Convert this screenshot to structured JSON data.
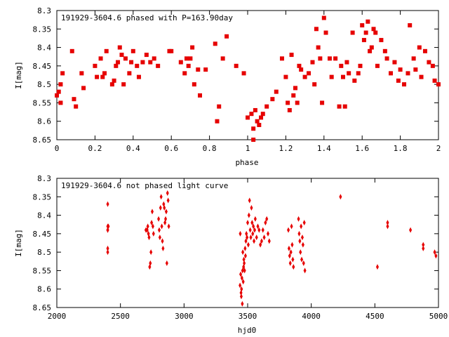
{
  "chart_data": [
    {
      "type": "scatter",
      "title": "191929-3604.6 phased with P=163.90day",
      "xlabel": "phase",
      "ylabel": "I[mag]",
      "xlim": [
        0,
        2
      ],
      "ylim": [
        8.3,
        8.65
      ],
      "y_inverted": true,
      "xticks": [
        "0",
        "0.2",
        "0.4",
        "0.6",
        "0.8",
        "1",
        "1.2",
        "1.4",
        "1.6",
        "1.8",
        "2"
      ],
      "yticks": [
        "8.3",
        "8.35",
        "8.4",
        "8.45",
        "8.5",
        "8.55",
        "8.6",
        "8.65"
      ],
      "grid": false,
      "marker_color": "#e60000",
      "x": [
        0.0,
        0.01,
        0.02,
        0.02,
        0.03,
        0.08,
        0.09,
        0.1,
        0.13,
        0.14,
        0.2,
        0.21,
        0.23,
        0.24,
        0.25,
        0.26,
        0.29,
        0.3,
        0.31,
        0.32,
        0.33,
        0.34,
        0.35,
        0.36,
        0.38,
        0.39,
        0.4,
        0.42,
        0.43,
        0.45,
        0.47,
        0.49,
        0.51,
        0.53,
        0.59,
        0.6,
        0.65,
        0.67,
        0.68,
        0.69,
        0.7,
        0.71,
        0.72,
        0.74,
        0.75,
        0.78,
        0.83,
        0.84,
        0.85,
        0.87,
        0.89,
        0.94,
        0.98,
        1.0,
        1.02,
        1.03,
        1.03,
        1.04,
        1.05,
        1.06,
        1.07,
        1.08,
        1.1,
        1.13,
        1.15,
        1.18,
        1.2,
        1.21,
        1.22,
        1.23,
        1.24,
        1.25,
        1.26,
        1.27,
        1.28,
        1.3,
        1.32,
        1.34,
        1.35,
        1.36,
        1.37,
        1.38,
        1.39,
        1.4,
        1.41,
        1.43,
        1.44,
        1.46,
        1.48,
        1.49,
        1.5,
        1.51,
        1.52,
        1.53,
        1.55,
        1.56,
        1.58,
        1.59,
        1.6,
        1.61,
        1.62,
        1.63,
        1.64,
        1.65,
        1.66,
        1.67,
        1.68,
        1.7,
        1.72,
        1.73,
        1.75,
        1.77,
        1.79,
        1.8,
        1.82,
        1.84,
        1.85,
        1.87,
        1.88,
        1.9,
        1.91,
        1.93,
        1.95,
        1.97,
        1.98,
        2.0
      ],
      "y": [
        8.53,
        8.52,
        8.55,
        8.5,
        8.47,
        8.41,
        8.54,
        8.56,
        8.47,
        8.51,
        8.45,
        8.48,
        8.43,
        8.48,
        8.47,
        8.41,
        8.5,
        8.49,
        8.45,
        8.44,
        8.4,
        8.42,
        8.5,
        8.43,
        8.47,
        8.44,
        8.41,
        8.45,
        8.48,
        8.44,
        8.42,
        8.44,
        8.43,
        8.45,
        8.41,
        8.41,
        8.44,
        8.47,
        8.43,
        8.45,
        8.43,
        8.4,
        8.5,
        8.46,
        8.53,
        8.46,
        8.39,
        8.6,
        8.56,
        8.43,
        8.37,
        8.45,
        8.47,
        8.59,
        8.58,
        8.62,
        8.65,
        8.57,
        8.6,
        8.61,
        8.59,
        8.58,
        8.56,
        8.54,
        8.52,
        8.43,
        8.48,
        8.55,
        8.57,
        8.42,
        8.53,
        8.51,
        8.55,
        8.45,
        8.46,
        8.48,
        8.47,
        8.44,
        8.5,
        8.35,
        8.4,
        8.43,
        8.55,
        8.32,
        8.36,
        8.43,
        8.48,
        8.43,
        8.56,
        8.45,
        8.48,
        8.56,
        8.44,
        8.47,
        8.36,
        8.49,
        8.47,
        8.45,
        8.34,
        8.38,
        8.36,
        8.33,
        8.41,
        8.4,
        8.35,
        8.36,
        8.45,
        8.38,
        8.41,
        8.43,
        8.47,
        8.44,
        8.49,
        8.46,
        8.5,
        8.47,
        8.34,
        8.43,
        8.46,
        8.4,
        8.48,
        8.41,
        8.44,
        8.45,
        8.49,
        8.5
      ]
    },
    {
      "type": "scatter",
      "title": "191929-3604.6 not phased light curve",
      "xlabel": "hjd0",
      "ylabel": "I[mag]",
      "xlim": [
        2000,
        5000
      ],
      "ylim": [
        8.3,
        8.65
      ],
      "y_inverted": true,
      "xticks": [
        "2000",
        "2500",
        "3000",
        "3500",
        "4000",
        "4500",
        "5000"
      ],
      "yticks": [
        "8.3",
        "8.35",
        "8.4",
        "8.45",
        "8.5",
        "8.55",
        "8.6",
        "8.65"
      ],
      "grid": false,
      "marker_color": "#e60000",
      "x": [
        2400,
        2400,
        2400,
        2400,
        2400,
        2400,
        2405,
        2700,
        2710,
        2715,
        2720,
        2725,
        2730,
        2735,
        2740,
        2745,
        2750,
        2755,
        2760,
        2800,
        2805,
        2810,
        2815,
        2820,
        2825,
        2830,
        2835,
        2840,
        2845,
        2850,
        2855,
        2860,
        2865,
        2870,
        2875,
        2880,
        3440,
        3442,
        3445,
        3448,
        3450,
        3452,
        3455,
        3458,
        3460,
        3462,
        3465,
        3468,
        3470,
        3473,
        3476,
        3480,
        3483,
        3486,
        3490,
        3495,
        3500,
        3505,
        3510,
        3515,
        3520,
        3525,
        3530,
        3535,
        3540,
        3545,
        3550,
        3555,
        3560,
        3570,
        3580,
        3590,
        3600,
        3610,
        3620,
        3630,
        3640,
        3650,
        3660,
        3670,
        3820,
        3825,
        3830,
        3835,
        3840,
        3845,
        3850,
        3855,
        3860,
        3900,
        3905,
        3910,
        3915,
        3920,
        3925,
        3930,
        3935,
        3940,
        3945,
        3950,
        4230,
        4520,
        4600,
        4600,
        4780,
        4880,
        4880,
        4970,
        4980
      ],
      "y": [
        8.37,
        8.43,
        8.44,
        8.49,
        8.5,
        8.44,
        8.43,
        8.44,
        8.44,
        8.43,
        8.45,
        8.46,
        8.54,
        8.53,
        8.5,
        8.42,
        8.39,
        8.43,
        8.45,
        8.41,
        8.44,
        8.46,
        8.38,
        8.35,
        8.43,
        8.47,
        8.49,
        8.37,
        8.38,
        8.42,
        8.41,
        8.39,
        8.53,
        8.34,
        8.36,
        8.43,
        8.59,
        8.45,
        8.56,
        8.61,
        8.62,
        8.6,
        8.57,
        8.64,
        8.55,
        8.5,
        8.58,
        8.54,
        8.52,
        8.53,
        8.55,
        8.49,
        8.51,
        8.47,
        8.45,
        8.46,
        8.42,
        8.48,
        8.4,
        8.36,
        8.44,
        8.46,
        8.38,
        8.42,
        8.45,
        8.43,
        8.47,
        8.44,
        8.41,
        8.46,
        8.43,
        8.44,
        8.48,
        8.47,
        8.44,
        8.46,
        8.42,
        8.41,
        8.45,
        8.47,
        8.44,
        8.49,
        8.51,
        8.53,
        8.5,
        8.43,
        8.48,
        8.52,
        8.54,
        8.41,
        8.45,
        8.47,
        8.5,
        8.43,
        8.52,
        8.46,
        8.48,
        8.53,
        8.42,
        8.55,
        8.35,
        8.54,
        8.42,
        8.43,
        8.44,
        8.49,
        8.48,
        8.5,
        8.51
      ]
    }
  ]
}
